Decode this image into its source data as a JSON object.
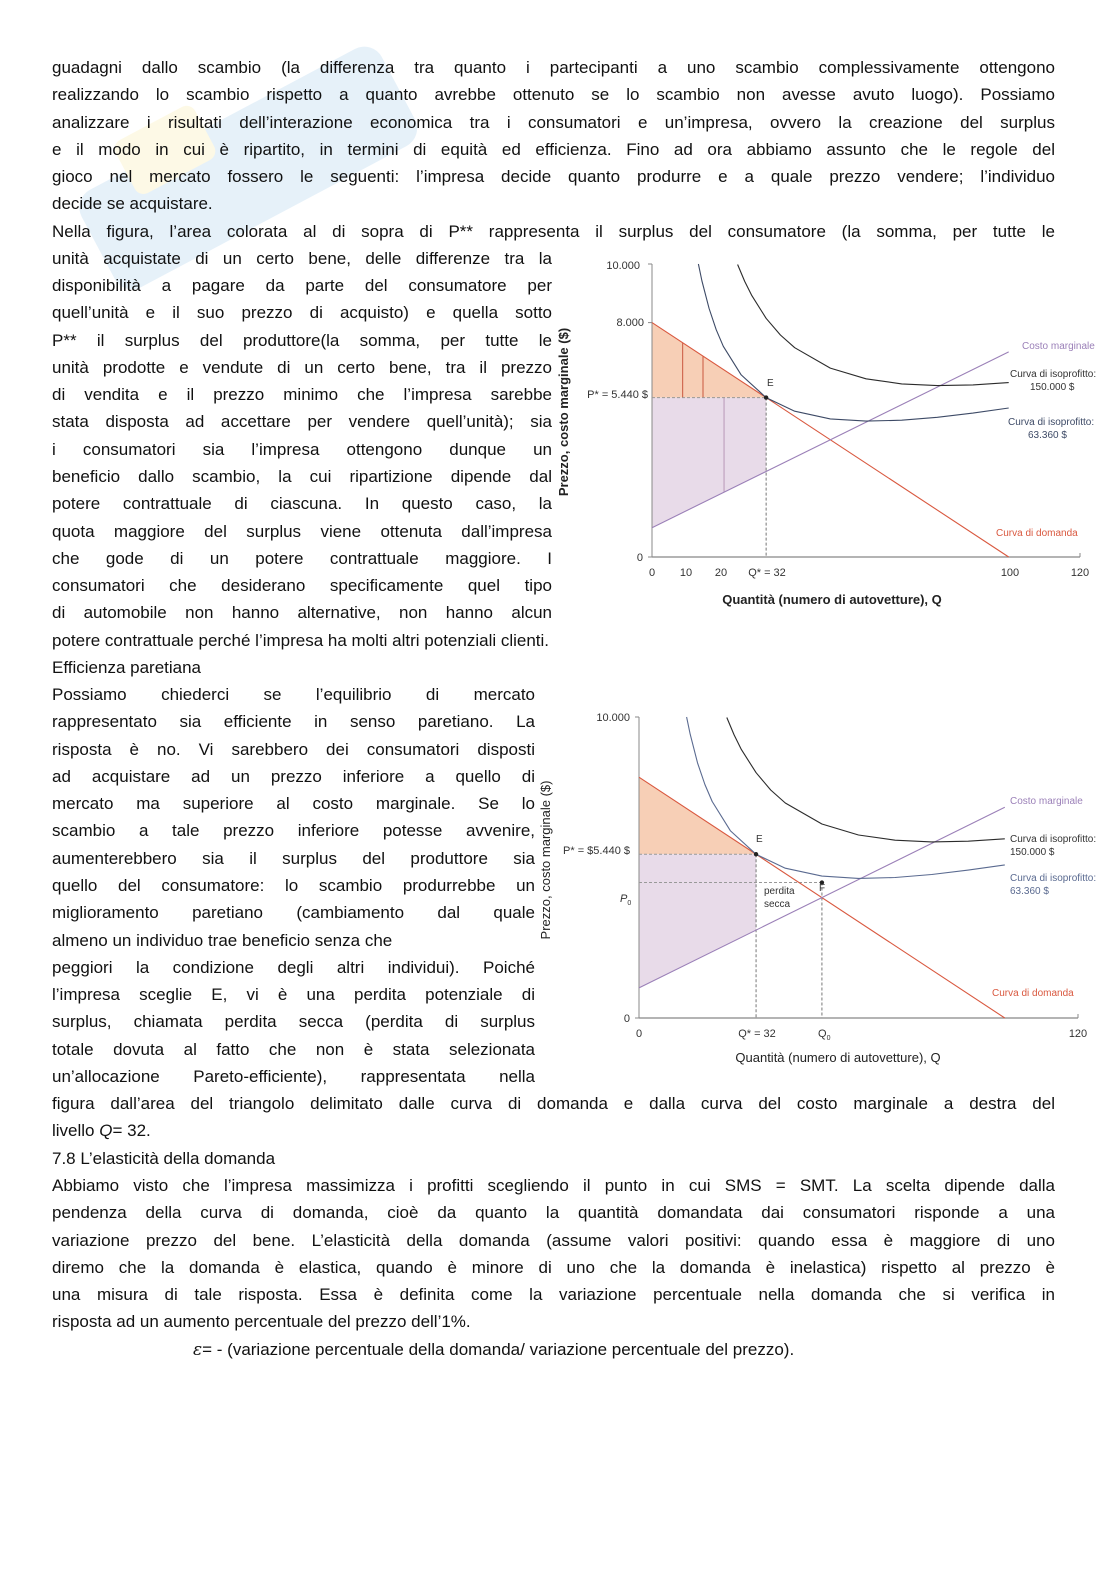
{
  "body": {
    "p1": [
      "guadagni dallo scambio (la differenza tra quanto i partecipanti a uno scambio complessivamente ottengono",
      "realizzando lo scambio rispetto a quanto avrebbe ottenuto se lo scambio non avesse avuto luogo). Possiamo",
      "analizzare i risultati dell’interazione economica tra i consumatori e un’impresa, ovvero la creazione del surplus",
      "e il modo in cui è ripartito, in termini di equità ed efficienza. Fino ad ora abbiamo assunto che le regole del",
      "gioco nel mercato fossero le seguenti: l’impresa decide quanto produrre e a quale prezzo vendere; l’individuo",
      "decide se acquistare."
    ],
    "p2_full": [
      "Nella figura, l’area colorata al di sopra di P** rappresenta il surplus del consumatore (la somma, per tutte le"
    ],
    "p2_narrow": [
      "unità acquistate di un certo bene, delle differenze tra la",
      "disponibilità a pagare da parte del consumatore per",
      "quell’unità e il suo prezzo di acquisto) e quella sotto",
      "P** il surplus del produttore(la somma, per tutte le",
      "unità prodotte e vendute di un certo bene, tra il prezzo",
      "di vendita e il prezzo minimo che l’impresa sarebbe",
      "stata disposta ad accettare per vendere quell’unità); sia",
      "i consumatori sia l’impresa ottengono dunque un",
      "beneficio dallo scambio, la cui ripartizione dipende dal",
      "potere contrattuale di ciascuna. In questo caso, la",
      "quota maggiore del surplus viene ottenuta dall’impresa",
      "che gode di un potere contrattuale maggiore. I",
      "consumatori che desiderano specificamente quel tipo",
      "di automobile non hanno alternative, non hanno alcun"
    ],
    "p2_end": [
      "potere contrattuale perché l’impresa ha molti altri potenziali clienti."
    ],
    "heading1": "Efficienza paretiana",
    "p3_narrow": [
      "Possiamo chiederci se l’equilibrio di mercato",
      "rappresentato sia efficiente in senso paretiano. La",
      "risposta è no. Vi sarebbero dei consumatori disposti",
      "ad acquistare ad un prezzo inferiore a quello di",
      "mercato ma superiore al costo marginale. Se lo",
      "scambio a tale prezzo inferiore potesse avvenire,",
      "aumenterebbero sia il surplus del produttore sia",
      "quello del consumatore: lo scambio produrrebbe un",
      "miglioramento paretiano (cambiamento dal quale",
      "almeno un individuo trae beneficio senza che",
      "peggiori la condizione degli altri individui). Poiché",
      "l’impresa sceglie E, vi è una perdita potenziale di",
      "surplus, chiamata perdita secca (perdita di surplus",
      "totale dovuta al fatto che non è stata selezionata",
      "un’allocazione Pareto-efficiente), rappresentata nella"
    ],
    "p3_end": [
      "figura dall’area del triangolo delimitato dalle curva di domanda e dalla curva del costo marginale a destra del"
    ],
    "p3_last": {
      "pre": "livello ",
      "q": "Q",
      "post": "= 32."
    },
    "heading2": "7.8 L’elasticità della domanda",
    "p4": [
      "Abbiamo visto che l’impresa massimizza i profitti scegliendo il punto in cui SMS = SMT. La scelta dipende dalla",
      "pendenza della curva di domanda, cioè da quanto la quantità domandata dai consumatori risponde a una",
      "variazione prezzo del bene. L’elasticità della domanda (assume valori positivi: quando essa è maggiore di uno",
      "diremo che la domanda è elastica, quando è minore di uno che la domanda è inelastica) rispetto al prezzo è",
      "una misura di tale risposta. Essa è definita come la variazione percentuale nella domanda che si verifica in",
      "risposta ad un aumento percentuale del prezzo dell’1%."
    ],
    "formula": {
      "symbol": "ε",
      "text": "= - (variazione percentuale della domanda/ variazione percentuale del prezzo)."
    }
  },
  "colors": {
    "demand": "#d9583f",
    "marginal_cost": "#9b80b8",
    "isoprofit_high": "#2b2b2b",
    "isoprofit_low": "#3d4a66",
    "consumer_surplus_fill": "#f7cfb6",
    "producer_surplus_fill": "#e8dbe9"
  },
  "chart_data": [
    {
      "type": "line",
      "xlabel": "Quantità (numero di autovetture), Q",
      "ylabel": "Prezzo, costo marginale ($)",
      "xlim": [
        0,
        120
      ],
      "ylim": [
        0,
        10000
      ],
      "x_ticks": [
        {
          "value": 0,
          "label": "0"
        },
        {
          "value": 10,
          "label": "10"
        },
        {
          "value": 20,
          "label": "20"
        },
        {
          "value": 32,
          "label": "Q* = 32"
        },
        {
          "value": 100,
          "label": "100"
        },
        {
          "value": 120,
          "label": "120"
        }
      ],
      "y_ticks": [
        {
          "value": 10000,
          "label": "10.000"
        },
        {
          "value": 8000,
          "label": "8.000"
        },
        {
          "value": 5440,
          "label": "P* = 5.440 $"
        },
        {
          "value": 0,
          "label": "0"
        }
      ],
      "series": [
        {
          "name": "Curva di domanda",
          "points": [
            [
              0,
              8000
            ],
            [
              100,
              0
            ]
          ]
        },
        {
          "name": "Costo marginale",
          "points": [
            [
              0,
              1000
            ],
            [
              100,
              7000
            ]
          ]
        },
        {
          "name": "Curva di isoprofitto:",
          "value_label": "150.000 $",
          "points": [
            [
              24,
              9983
            ],
            [
              26,
              9405
            ],
            [
              28,
              8917
            ],
            [
              32,
              8148
            ],
            [
              36,
              7576
            ],
            [
              40,
              7142
            ],
            [
              50,
              6446
            ],
            [
              60,
              6081
            ],
            [
              70,
              5907
            ],
            [
              80,
              5851
            ],
            [
              90,
              5874
            ],
            [
              100,
              5953
            ]
          ]
        },
        {
          "name": "Curva di isoprofitto:",
          "value_label": "63.360 $",
          "points": [
            [
              13,
              10000
            ],
            [
              14,
              9426
            ],
            [
              16,
              8480
            ],
            [
              18,
              7758
            ],
            [
              20,
              7192
            ],
            [
              25,
              6216
            ],
            [
              32,
              5440
            ],
            [
              40,
              4976
            ],
            [
              50,
              4713
            ],
            [
              60,
              4637
            ],
            [
              70,
              4669
            ],
            [
              80,
              4768
            ],
            [
              90,
              4912
            ],
            [
              100,
              5086
            ]
          ]
        }
      ],
      "points": [
        {
          "label": "E",
          "x": 32,
          "y": 5440
        }
      ],
      "consumer_surplus": [
        [
          0,
          8000
        ],
        [
          32,
          5440
        ],
        [
          0,
          5440
        ]
      ],
      "producer_surplus": [
        [
          0,
          5440
        ],
        [
          32,
          5440
        ],
        [
          32,
          2920
        ],
        [
          0,
          1000
        ]
      ],
      "surplus_dividers": [
        8.6,
        14.3,
        20.2
      ]
    },
    {
      "type": "line",
      "xlabel": "Quantità (numero di autovetture), Q",
      "ylabel": "Prezzo, costo marginale ($)",
      "xlim": [
        0,
        120
      ],
      "ylim": [
        0,
        10000
      ],
      "x_ticks": [
        {
          "value": 0,
          "label": "0"
        },
        {
          "value": 32,
          "label": "Q* = 32"
        },
        {
          "value": 50,
          "label": "Q",
          "sub": "0"
        },
        {
          "value": 120,
          "label": "120"
        }
      ],
      "y_ticks": [
        {
          "value": 10000,
          "label": "10.000"
        },
        {
          "value": 5440,
          "label": "P* = $5.440 $"
        },
        {
          "value": 4500,
          "label": "P",
          "sub": "0"
        },
        {
          "value": 0,
          "label": "0"
        }
      ],
      "series": [
        {
          "name": "Curva di domanda",
          "points": [
            [
              0,
              8000
            ],
            [
              100,
              0
            ]
          ]
        },
        {
          "name": "Costo marginale",
          "points": [
            [
              0,
              1000
            ],
            [
              100,
              7000
            ]
          ]
        },
        {
          "name": "Curva di isoprofitto:",
          "value_label": "150.000 $",
          "points": [
            [
              24,
              9983
            ],
            [
              26,
              9405
            ],
            [
              28,
              8917
            ],
            [
              32,
              8148
            ],
            [
              36,
              7576
            ],
            [
              40,
              7142
            ],
            [
              50,
              6446
            ],
            [
              60,
              6081
            ],
            [
              70,
              5907
            ],
            [
              80,
              5851
            ],
            [
              90,
              5874
            ],
            [
              100,
              5953
            ]
          ]
        },
        {
          "name": "Curva di isoprofitto:",
          "value_label": "63.360 $",
          "points": [
            [
              13,
              10000
            ],
            [
              14,
              9426
            ],
            [
              16,
              8480
            ],
            [
              18,
              7758
            ],
            [
              20,
              7192
            ],
            [
              25,
              6216
            ],
            [
              32,
              5440
            ],
            [
              40,
              4976
            ],
            [
              50,
              4713
            ],
            [
              60,
              4637
            ],
            [
              70,
              4669
            ],
            [
              80,
              4768
            ],
            [
              90,
              4912
            ],
            [
              100,
              5086
            ]
          ]
        }
      ],
      "points": [
        {
          "label": "E",
          "x": 32,
          "y": 5440
        },
        {
          "label": "F",
          "x": 50,
          "y": 4500
        }
      ],
      "annotation": [
        "perdita",
        "secca"
      ],
      "consumer_surplus": [
        [
          0,
          8000
        ],
        [
          32,
          5440
        ],
        [
          0,
          5440
        ]
      ],
      "producer_surplus": [
        [
          0,
          5440
        ],
        [
          32,
          5440
        ],
        [
          32,
          2920
        ],
        [
          0,
          1000
        ]
      ]
    }
  ]
}
